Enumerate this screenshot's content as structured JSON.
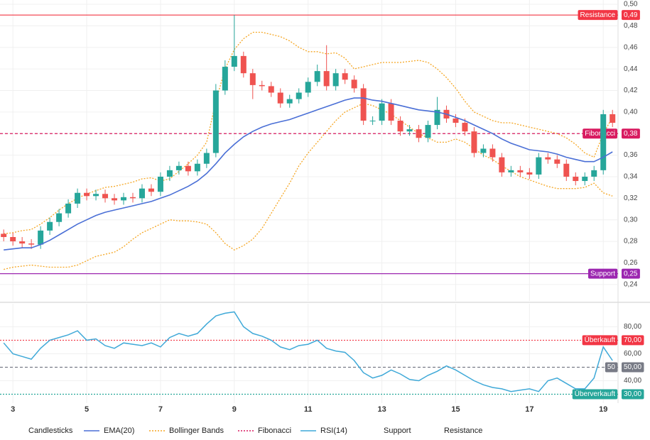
{
  "chart_data": [
    {
      "type": "candlestick",
      "x": [
        2.75,
        3,
        3.25,
        3.5,
        3.75,
        4,
        4.25,
        4.5,
        4.75,
        5,
        5.25,
        5.5,
        5.75,
        6,
        6.25,
        6.5,
        6.75,
        7,
        7.25,
        7.5,
        7.75,
        8,
        8.25,
        8.5,
        8.75,
        9,
        9.25,
        9.5,
        9.75,
        10,
        10.25,
        10.5,
        10.75,
        11,
        11.25,
        11.5,
        11.75,
        12,
        12.25,
        12.5,
        12.75,
        13,
        13.25,
        13.5,
        13.75,
        14,
        14.25,
        14.5,
        14.75,
        15,
        15.25,
        15.5,
        15.75,
        16,
        16.25,
        16.5,
        16.75,
        17,
        17.25,
        17.5,
        17.75,
        18,
        18.25,
        18.5,
        18.75,
        19,
        19.25
      ],
      "open": [
        0.287,
        0.284,
        0.28,
        0.278,
        0.277,
        0.29,
        0.298,
        0.306,
        0.315,
        0.325,
        0.322,
        0.324,
        0.32,
        0.318,
        0.321,
        0.32,
        0.329,
        0.326,
        0.34,
        0.346,
        0.35,
        0.345,
        0.352,
        0.362,
        0.42,
        0.442,
        0.452,
        0.436,
        0.425,
        0.424,
        0.418,
        0.408,
        0.412,
        0.418,
        0.428,
        0.438,
        0.424,
        0.436,
        0.43,
        0.422,
        0.392,
        0.392,
        0.408,
        0.392,
        0.382,
        0.384,
        0.376,
        0.388,
        0.402,
        0.394,
        0.39,
        0.382,
        0.362,
        0.366,
        0.358,
        0.344,
        0.346,
        0.344,
        0.342,
        0.358,
        0.356,
        0.352,
        0.34,
        0.336,
        0.34,
        0.346,
        0.398
      ],
      "high": [
        0.291,
        0.288,
        0.284,
        0.282,
        0.294,
        0.302,
        0.31,
        0.319,
        0.329,
        0.329,
        0.328,
        0.328,
        0.324,
        0.325,
        0.325,
        0.333,
        0.333,
        0.344,
        0.35,
        0.354,
        0.354,
        0.356,
        0.366,
        0.426,
        0.448,
        0.49,
        0.456,
        0.44,
        0.429,
        0.428,
        0.422,
        0.416,
        0.422,
        0.432,
        0.444,
        0.462,
        0.44,
        0.44,
        0.434,
        0.426,
        0.396,
        0.412,
        0.412,
        0.396,
        0.388,
        0.388,
        0.392,
        0.414,
        0.406,
        0.398,
        0.394,
        0.386,
        0.37,
        0.37,
        0.362,
        0.35,
        0.35,
        0.348,
        0.362,
        0.362,
        0.36,
        0.356,
        0.344,
        0.344,
        0.35,
        0.402,
        0.402
      ],
      "low": [
        0.28,
        0.276,
        0.274,
        0.273,
        0.273,
        0.286,
        0.294,
        0.302,
        0.311,
        0.318,
        0.318,
        0.316,
        0.314,
        0.314,
        0.316,
        0.316,
        0.322,
        0.322,
        0.336,
        0.342,
        0.341,
        0.341,
        0.348,
        0.358,
        0.416,
        0.438,
        0.432,
        0.412,
        0.42,
        0.414,
        0.404,
        0.404,
        0.408,
        0.414,
        0.424,
        0.42,
        0.42,
        0.426,
        0.418,
        0.388,
        0.388,
        0.388,
        0.388,
        0.378,
        0.378,
        0.372,
        0.372,
        0.384,
        0.39,
        0.386,
        0.378,
        0.358,
        0.358,
        0.354,
        0.34,
        0.34,
        0.34,
        0.338,
        0.338,
        0.352,
        0.348,
        0.336,
        0.332,
        0.332,
        0.336,
        0.342,
        0.386
      ],
      "close": [
        0.284,
        0.28,
        0.278,
        0.277,
        0.29,
        0.298,
        0.306,
        0.315,
        0.325,
        0.322,
        0.324,
        0.32,
        0.318,
        0.321,
        0.32,
        0.329,
        0.326,
        0.34,
        0.346,
        0.35,
        0.345,
        0.352,
        0.362,
        0.42,
        0.442,
        0.452,
        0.436,
        0.425,
        0.424,
        0.418,
        0.408,
        0.412,
        0.418,
        0.428,
        0.438,
        0.424,
        0.436,
        0.43,
        0.422,
        0.392,
        0.392,
        0.408,
        0.392,
        0.382,
        0.384,
        0.376,
        0.388,
        0.402,
        0.394,
        0.39,
        0.382,
        0.362,
        0.366,
        0.358,
        0.344,
        0.346,
        0.344,
        0.342,
        0.358,
        0.356,
        0.352,
        0.34,
        0.336,
        0.34,
        0.346,
        0.398,
        0.39
      ],
      "up_color": "#26a69a",
      "down_color": "#ef5350",
      "ema": {
        "color": "#4a6fd6",
        "values": [
          0.272,
          0.273,
          0.274,
          0.274,
          0.277,
          0.281,
          0.286,
          0.291,
          0.296,
          0.3,
          0.304,
          0.307,
          0.309,
          0.311,
          0.313,
          0.315,
          0.317,
          0.32,
          0.323,
          0.327,
          0.331,
          0.336,
          0.343,
          0.352,
          0.362,
          0.37,
          0.377,
          0.382,
          0.386,
          0.389,
          0.391,
          0.393,
          0.396,
          0.399,
          0.402,
          0.405,
          0.408,
          0.411,
          0.413,
          0.413,
          0.411,
          0.41,
          0.408,
          0.406,
          0.404,
          0.402,
          0.401,
          0.4,
          0.398,
          0.395,
          0.392,
          0.388,
          0.384,
          0.38,
          0.375,
          0.371,
          0.368,
          0.365,
          0.364,
          0.363,
          0.361,
          0.358,
          0.356,
          0.354,
          0.354,
          0.358,
          0.363
        ]
      },
      "bollinger": {
        "color": "#f5a623",
        "upper": [
          0.287,
          0.288,
          0.29,
          0.291,
          0.296,
          0.302,
          0.309,
          0.315,
          0.32,
          0.324,
          0.327,
          0.33,
          0.331,
          0.333,
          0.335,
          0.338,
          0.339,
          0.336,
          0.338,
          0.345,
          0.352,
          0.36,
          0.372,
          0.41,
          0.44,
          0.458,
          0.468,
          0.474,
          0.474,
          0.472,
          0.47,
          0.466,
          0.46,
          0.456,
          0.456,
          0.454,
          0.455,
          0.45,
          0.44,
          0.442,
          0.444,
          0.446,
          0.446,
          0.446,
          0.447,
          0.448,
          0.446,
          0.44,
          0.432,
          0.422,
          0.41,
          0.4,
          0.396,
          0.392,
          0.39,
          0.39,
          0.388,
          0.386,
          0.384,
          0.382,
          0.38,
          0.376,
          0.37,
          0.362,
          0.358,
          0.38,
          0.395
        ],
        "lower": [
          0.254,
          0.256,
          0.257,
          0.258,
          0.257,
          0.256,
          0.256,
          0.256,
          0.258,
          0.262,
          0.266,
          0.268,
          0.27,
          0.275,
          0.282,
          0.288,
          0.292,
          0.296,
          0.3,
          0.299,
          0.299,
          0.298,
          0.296,
          0.288,
          0.278,
          0.272,
          0.276,
          0.282,
          0.292,
          0.306,
          0.32,
          0.334,
          0.35,
          0.362,
          0.372,
          0.382,
          0.392,
          0.4,
          0.404,
          0.408,
          0.406,
          0.402,
          0.398,
          0.392,
          0.386,
          0.38,
          0.376,
          0.372,
          0.372,
          0.375,
          0.372,
          0.366,
          0.36,
          0.356,
          0.35,
          0.345,
          0.34,
          0.337,
          0.334,
          0.331,
          0.329,
          0.329,
          0.329,
          0.33,
          0.334,
          0.325,
          0.322
        ]
      },
      "levels": [
        {
          "name": "Resistance",
          "value": 0.49,
          "label": "0,49",
          "color": "#f23645",
          "style": "solid"
        },
        {
          "name": "Fibonacci",
          "value": 0.38,
          "label": "0,38",
          "color": "#d81b60",
          "style": "dashed"
        },
        {
          "name": "Support",
          "value": 0.25,
          "label": "0,25",
          "color": "#9c27b0",
          "style": "solid"
        }
      ],
      "xlim": [
        2.65,
        19.4
      ],
      "ylim": [
        0.23,
        0.5
      ],
      "yticks": [
        {
          "value": 0.24,
          "label": "0,24"
        },
        {
          "value": 0.26,
          "label": "0,26"
        },
        {
          "value": 0.28,
          "label": "0,28"
        },
        {
          "value": 0.3,
          "label": "0,30"
        },
        {
          "value": 0.32,
          "label": "0,32"
        },
        {
          "value": 0.34,
          "label": "0,34"
        },
        {
          "value": 0.36,
          "label": "0,36"
        },
        {
          "value": 0.38,
          "label": "0,38"
        },
        {
          "value": 0.4,
          "label": "0,40"
        },
        {
          "value": 0.42,
          "label": "0,42"
        },
        {
          "value": 0.44,
          "label": "0,44"
        },
        {
          "value": 0.46,
          "label": "0,46"
        },
        {
          "value": 0.48,
          "label": "0,48"
        },
        {
          "value": 0.5,
          "label": "0,50"
        }
      ],
      "grid": true
    },
    {
      "type": "line",
      "series": [
        {
          "name": "RSI(14)",
          "color": "#3fa9d8",
          "values": [
            68,
            60,
            58,
            56,
            64,
            70,
            72,
            74,
            77,
            70,
            71,
            66,
            64,
            68,
            67,
            66,
            68,
            65,
            72,
            75,
            73,
            75,
            82,
            88,
            90,
            91,
            80,
            75,
            73,
            70,
            65,
            63,
            66,
            67,
            70,
            64,
            62,
            61,
            55,
            46,
            42,
            44,
            48,
            45,
            41,
            40,
            44,
            47,
            51,
            48,
            44,
            40,
            37,
            35,
            34,
            32,
            33,
            34,
            32,
            40,
            42,
            38,
            34,
            34,
            42,
            65,
            55
          ]
        }
      ],
      "levels": [
        {
          "name": "Überkauft",
          "value": 70,
          "label": "70,00",
          "color": "#f23645",
          "style": "dotted"
        },
        {
          "name": "50",
          "value": 50,
          "label": "50,00",
          "color": "#787b86",
          "style": "dashed"
        },
        {
          "name": "Überverkauft",
          "value": 30,
          "label": "30,00",
          "color": "#26a69a",
          "style": "dotted"
        }
      ],
      "xlim": [
        2.65,
        19.4
      ],
      "ylim": [
        25,
        96
      ],
      "yticks": [
        {
          "value": 40,
          "label": "40,00"
        },
        {
          "value": 60,
          "label": "60,00"
        },
        {
          "value": 80,
          "label": "80,00"
        }
      ],
      "xticks": [
        3,
        5,
        7,
        9,
        11,
        13,
        15,
        17,
        19
      ],
      "grid": true
    }
  ],
  "legend": [
    {
      "name": "Candlesticks"
    },
    {
      "name": "EMA(20)",
      "color": "#4a6fd6",
      "style": "solid"
    },
    {
      "name": "Bollinger Bands",
      "color": "#f5a623",
      "style": "dotted"
    },
    {
      "name": "Fibonacci",
      "color": "#d81b60",
      "style": "dotted"
    },
    {
      "name": "RSI(14)",
      "color": "#3fa9d8",
      "style": "solid"
    },
    {
      "name": "Support"
    },
    {
      "name": "Resistance"
    }
  ]
}
